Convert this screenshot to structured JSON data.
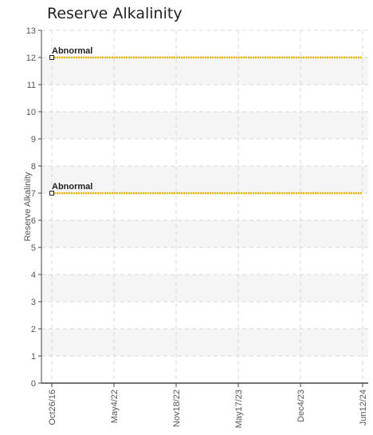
{
  "chart_data": {
    "type": "line",
    "title": "Reserve Alkalinity",
    "xlabel": "",
    "ylabel": "Reserve Alkalinity",
    "x_ticks": [
      "Oct26/16",
      "May4/22",
      "Nov18/22",
      "May17/23",
      "Dec4/23",
      "Jun12/24"
    ],
    "y_ticks": [
      0,
      1,
      2,
      3,
      4,
      5,
      6,
      7,
      8,
      9,
      10,
      11,
      12,
      13
    ],
    "ylim": [
      0,
      13
    ],
    "grid": true,
    "series": [
      {
        "color": "#f0b400",
        "points": [
          {
            "x": "Oct26/16",
            "y": 12
          },
          {
            "x": "Jun12/24",
            "y": 12
          }
        ],
        "annotation": "Abnormal"
      },
      {
        "color": "#f0b400",
        "points": [
          {
            "x": "Oct26/16",
            "y": 7
          },
          {
            "x": "Jun12/24",
            "y": 7
          }
        ],
        "annotation": "Abnormal"
      }
    ]
  }
}
